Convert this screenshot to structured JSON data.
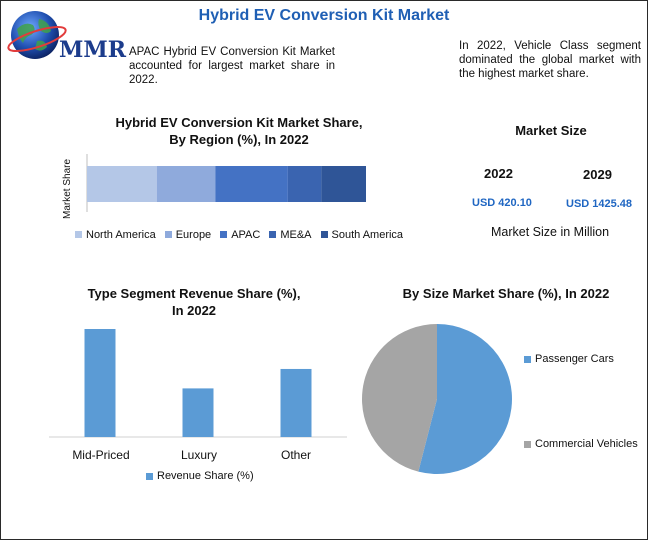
{
  "header": {
    "title": "Hybrid EV Conversion Kit Market",
    "logo_text": "MMR"
  },
  "notes": {
    "left": "APAC Hybrid EV Conversion Kit Market accounted for largest market share in 2022.",
    "right": "In 2022, Vehicle Class segment dominated the global market with the highest market share."
  },
  "market_size": {
    "title": "Market Size",
    "years": [
      "2022",
      "2029"
    ],
    "values": [
      "USD 420.10",
      "USD 1425.48"
    ],
    "footer": "Market Size in Million"
  },
  "colors": {
    "title": "#1f5fb4",
    "usd": "#1f66c2",
    "bar_blue": "#5b9bd5",
    "pie_gray": "#a5a5a5"
  },
  "chart_data": [
    {
      "type": "bar",
      "orientation": "horizontal-stacked",
      "title": "Hybrid EV Conversion Kit Market Share, By Region (%), In 2022",
      "ylabel": "Market Share",
      "categories": [
        "Market Share"
      ],
      "series": [
        {
          "name": "North America",
          "values": [
            25
          ],
          "color": "#b4c7e7"
        },
        {
          "name": "Europe",
          "values": [
            21
          ],
          "color": "#8faadc"
        },
        {
          "name": "APAC",
          "values": [
            26
          ],
          "color": "#4472c4"
        },
        {
          "name": "ME&A",
          "values": [
            12
          ],
          "color": "#3a64b0"
        },
        {
          "name": "South America",
          "values": [
            16
          ],
          "color": "#2f5597"
        }
      ],
      "legend": "bottom"
    },
    {
      "type": "bar",
      "title": "Type Segment Revenue Share (%), In 2022",
      "categories": [
        "Mid-Priced",
        "Luxury",
        "Other"
      ],
      "series": [
        {
          "name": "Revenue Share (%)",
          "values": [
            100,
            45,
            63
          ]
        }
      ],
      "ylim": [
        0,
        100
      ],
      "legend": "bottom",
      "grid": false
    },
    {
      "type": "pie",
      "title": "By Size Market Share (%), In 2022",
      "labels": [
        "Passenger Cars",
        "Commercial Vehicles"
      ],
      "values": [
        54,
        46
      ],
      "colors": [
        "#5b9bd5",
        "#a5a5a5"
      ],
      "legend": "right"
    }
  ]
}
